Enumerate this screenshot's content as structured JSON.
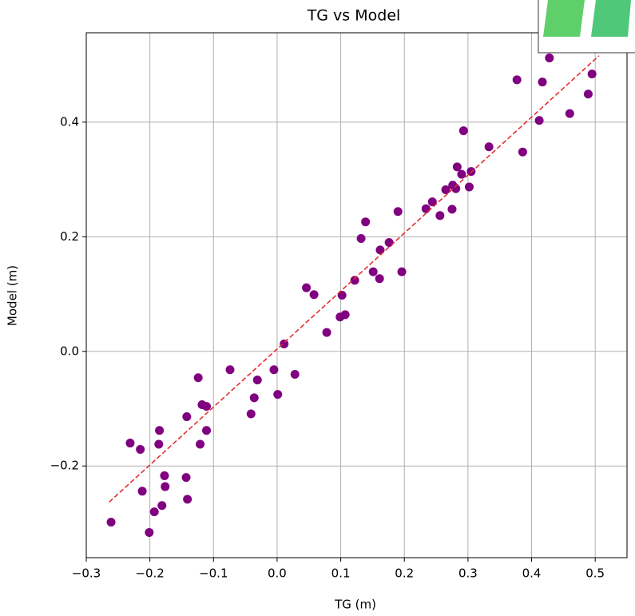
{
  "chart_data": {
    "type": "scatter",
    "title": "TG vs Model",
    "x_label": "TG (m)",
    "y_label": "Model (m)",
    "xlim": [
      -0.3,
      0.55
    ],
    "ylim": [
      -0.36,
      0.556
    ],
    "xticks": [
      {
        "value": -0.3,
        "label": "−0.3"
      },
      {
        "value": -0.2,
        "label": "−0.2"
      },
      {
        "value": -0.1,
        "label": "−0.1"
      },
      {
        "value": 0,
        "label": "0.0"
      },
      0.1,
      0.2,
      0.3,
      0.4,
      0.5
    ],
    "yticks": [
      {
        "value": -0.2,
        "label": "−0.2"
      },
      {
        "value": 0,
        "label": "0.0"
      },
      0.2,
      0.4
    ],
    "grid": true,
    "series": [
      {
        "color": "#800080",
        "x": [
          -0.261,
          -0.231,
          -0.215,
          -0.212,
          -0.201,
          -0.193,
          -0.186,
          -0.185,
          -0.181,
          -0.177,
          -0.176,
          -0.143,
          -0.142,
          -0.141,
          -0.124,
          -0.121,
          -0.118,
          -0.111,
          -0.111,
          -0.074,
          -0.041,
          -0.036,
          -0.031,
          -0.005,
          0.001,
          0.011,
          0.028,
          0.046,
          0.058,
          0.078,
          0.099,
          0.102,
          0.107,
          0.122,
          0.132,
          0.139,
          0.151,
          0.161,
          0.162,
          0.176,
          0.19,
          0.196,
          0.234,
          0.244,
          0.256,
          0.265,
          0.275,
          0.276,
          0.281,
          0.283,
          0.29,
          0.293,
          0.302,
          0.305,
          0.333,
          0.377,
          0.386,
          0.412,
          0.417,
          0.428,
          0.46,
          0.489,
          0.495
        ],
        "y": [
          -0.298,
          -0.16,
          -0.171,
          -0.244,
          -0.316,
          -0.28,
          -0.162,
          -0.138,
          -0.269,
          -0.217,
          -0.236,
          -0.22,
          -0.114,
          -0.258,
          -0.046,
          -0.162,
          -0.093,
          -0.096,
          -0.138,
          -0.032,
          -0.109,
          -0.081,
          -0.05,
          -0.032,
          -0.075,
          0.013,
          -0.04,
          0.111,
          0.099,
          0.033,
          0.06,
          0.098,
          0.064,
          0.124,
          0.197,
          0.226,
          0.139,
          0.127,
          0.177,
          0.19,
          0.244,
          0.139,
          0.249,
          0.261,
          0.237,
          0.282,
          0.248,
          0.29,
          0.284,
          0.322,
          0.309,
          0.385,
          0.287,
          0.314,
          0.357,
          0.474,
          0.348,
          0.403,
          0.47,
          0.512,
          0.415,
          0.449,
          0.484
        ]
      }
    ],
    "fit": {
      "color": "#e03030",
      "dashed": true,
      "x": [
        -0.264,
        0.506
      ],
      "y": [
        -0.263,
        0.516
      ]
    }
  }
}
